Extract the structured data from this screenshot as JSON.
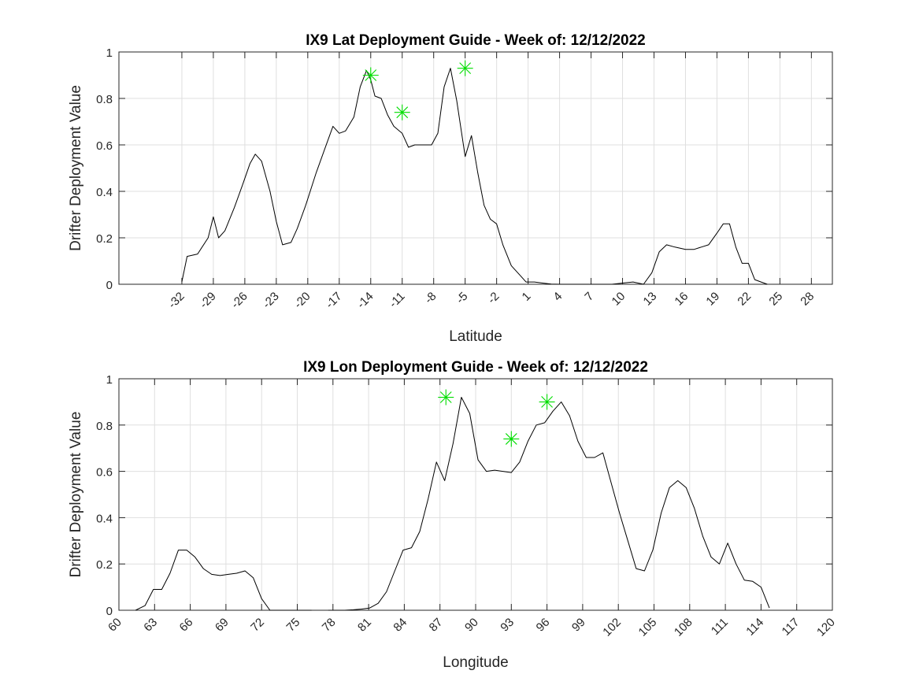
{
  "chart_data": [
    {
      "type": "line",
      "title": "IX9 Lat Deployment Guide - Week of: 12/12/2022",
      "xlabel": "Latitude",
      "ylabel": "Drifter Deployment Value",
      "xlim": [
        -38,
        30
      ],
      "ylim": [
        0,
        1
      ],
      "grid": true,
      "x_ticks": [
        -32,
        -29,
        -26,
        -23,
        -20,
        -17,
        -14,
        -11,
        -8,
        -5,
        -2,
        1,
        4,
        7,
        10,
        13,
        16,
        19,
        22,
        25,
        28
      ],
      "y_ticks": [
        0,
        0.2,
        0.4,
        0.6,
        0.8,
        1
      ],
      "x_tick_labels": [
        "-32",
        "-29",
        "-26",
        "-23",
        "-20",
        "-17",
        "-14",
        "-11",
        "-8",
        "-5",
        "-2",
        "1",
        "4",
        "7",
        "10",
        "13",
        "16",
        "19",
        "22",
        "25",
        "28"
      ],
      "y_tick_labels": [
        "0",
        "0.2",
        "0.4",
        "0.6",
        "0.8",
        "1"
      ],
      "series": [
        {
          "color": "#000000",
          "x": [
            -32,
            -31.5,
            -30.5,
            -29.5,
            -29,
            -28.5,
            -27.9,
            -27,
            -26.2,
            -25.5,
            -25,
            -24.4,
            -23.6,
            -23,
            -22.4,
            -21.6,
            -21,
            -20.2,
            -19.2,
            -18.4,
            -17.6,
            -17,
            -16.4,
            -15.6,
            -15,
            -14.4,
            -14,
            -13.6,
            -13,
            -12.4,
            -11.8,
            -11,
            -10.4,
            -9.8,
            -9,
            -8.2,
            -7.6,
            -7,
            -6.4,
            -5.8,
            -5,
            -4.4,
            -3.8,
            -3.2,
            -2.6,
            -2,
            -1.4,
            -0.6,
            0.2,
            0.8,
            1.6,
            2.4,
            3.2,
            4,
            5,
            6,
            7,
            8,
            9,
            10,
            11,
            12,
            12.8,
            13.5,
            14.2,
            15,
            16,
            16.8,
            17.5,
            18.2,
            19,
            19.6,
            20.2,
            20.8,
            21.4,
            22,
            22.6,
            23.2,
            23.8
          ],
          "y": [
            0.01,
            0.12,
            0.13,
            0.2,
            0.29,
            0.2,
            0.23,
            0.33,
            0.43,
            0.52,
            0.56,
            0.53,
            0.4,
            0.27,
            0.17,
            0.18,
            0.24,
            0.34,
            0.48,
            0.58,
            0.68,
            0.65,
            0.66,
            0.72,
            0.85,
            0.92,
            0.88,
            0.81,
            0.8,
            0.73,
            0.68,
            0.65,
            0.59,
            0.6,
            0.6,
            0.6,
            0.65,
            0.85,
            0.93,
            0.79,
            0.55,
            0.64,
            0.48,
            0.34,
            0.28,
            0.26,
            0.17,
            0.08,
            0.04,
            0.01,
            0.01,
            0.005,
            0.001,
            0,
            0,
            0,
            0,
            0,
            0,
            0.005,
            0.01,
            0,
            0.05,
            0.14,
            0.17,
            0.16,
            0.15,
            0.15,
            0.16,
            0.17,
            0.22,
            0.26,
            0.26,
            0.16,
            0.09,
            0.09,
            0.02,
            0.01,
            0
          ]
        },
        {
          "type": "scatter",
          "color": "#00dd00",
          "marker": "asterisk",
          "x": [
            -14,
            -11,
            -5
          ],
          "y": [
            0.9,
            0.74,
            0.93
          ]
        }
      ]
    },
    {
      "type": "line",
      "title": "IX9 Lon Deployment Guide - Week of: 12/12/2022",
      "xlabel": "Longitude",
      "ylabel": "Drifter Deployment Value",
      "xlim": [
        60,
        120
      ],
      "ylim": [
        0,
        1
      ],
      "grid": true,
      "x_ticks": [
        60,
        63,
        66,
        69,
        72,
        75,
        78,
        81,
        84,
        87,
        90,
        93,
        96,
        99,
        102,
        105,
        108,
        111,
        114,
        117,
        120
      ],
      "y_ticks": [
        0,
        0.2,
        0.4,
        0.6,
        0.8,
        1
      ],
      "x_tick_labels": [
        "60",
        "63",
        "66",
        "69",
        "72",
        "75",
        "78",
        "81",
        "84",
        "87",
        "90",
        "93",
        "96",
        "99",
        "102",
        "105",
        "108",
        "111",
        "114",
        "117",
        "120"
      ],
      "y_tick_labels": [
        "0",
        "0.2",
        "0.4",
        "0.6",
        "0.8",
        "1"
      ],
      "series": [
        {
          "color": "#000000",
          "x": [
            61.4,
            62.2,
            62.9,
            63.6,
            64.3,
            65,
            65.7,
            66.4,
            67.1,
            67.8,
            68.5,
            69.2,
            69.9,
            70.6,
            71.3,
            72,
            72.7,
            73.4,
            74.1,
            74.8,
            75.5,
            76.2,
            76.9,
            77.6,
            78.3,
            79,
            79.7,
            80.4,
            81.1,
            81.8,
            82.5,
            83.2,
            83.9,
            84.6,
            85.3,
            86,
            86.7,
            87.4,
            88.1,
            88.8,
            89.5,
            90.2,
            90.9,
            91.6,
            92.3,
            93,
            93.7,
            94.4,
            95.1,
            95.8,
            96.5,
            97.2,
            97.9,
            98.6,
            99.3,
            100,
            100.7,
            101.4,
            102.1,
            102.8,
            103.5,
            104.2,
            104.9,
            105.6,
            106.3,
            107,
            107.7,
            108.4,
            109.1,
            109.8,
            110.5,
            111.2,
            111.9,
            112.6,
            113.3,
            114,
            114.7
          ],
          "y": [
            0,
            0.02,
            0.09,
            0.09,
            0.16,
            0.26,
            0.26,
            0.23,
            0.18,
            0.155,
            0.15,
            0.155,
            0.16,
            0.17,
            0.14,
            0.05,
            0,
            0,
            0,
            0,
            0,
            0,
            null,
            0,
            0,
            0,
            0.002,
            0.005,
            0.01,
            0.03,
            0.08,
            0.17,
            0.26,
            0.27,
            0.34,
            0.48,
            0.64,
            0.56,
            0.72,
            0.92,
            0.85,
            0.65,
            0.6,
            0.605,
            0.6,
            0.595,
            0.64,
            0.73,
            0.8,
            0.81,
            0.86,
            0.9,
            0.84,
            0.73,
            0.66,
            0.66,
            0.68,
            0.55,
            0.42,
            0.3,
            0.18,
            0.17,
            0.26,
            0.42,
            0.53,
            0.56,
            0.53,
            0.44,
            0.32,
            0.23,
            0.2,
            0.29,
            0.2,
            0.13,
            0.125,
            0.1,
            0.01
          ]
        },
        {
          "type": "scatter",
          "color": "#00dd00",
          "marker": "asterisk",
          "x": [
            87.5,
            93,
            96
          ],
          "y": [
            0.92,
            0.74,
            0.9
          ]
        }
      ]
    }
  ]
}
